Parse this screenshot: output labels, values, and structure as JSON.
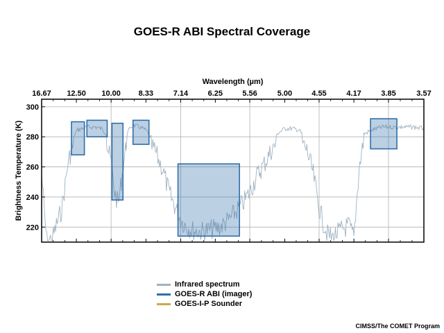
{
  "chart_data": {
    "type": "line",
    "title": "GOES-R ABI Spectral Coverage",
    "xlabel": "Wavelength (µm)",
    "ylabel": "Brightness Temperature (K)",
    "x_axis_scale": "reciprocal (wavenumber-linear)",
    "x_ticks": [
      "16.67",
      "12.50",
      "10.00",
      "8.33",
      "7.14",
      "6.25",
      "5.56",
      "5.00",
      "4.55",
      "4.17",
      "3.85",
      "3.57"
    ],
    "x_range": [
      16.67,
      3.57
    ],
    "ylim": [
      210,
      305
    ],
    "y_ticks": [
      220,
      240,
      260,
      280,
      300
    ],
    "grid": true,
    "series": [
      {
        "name": "Infrared spectrum",
        "color": "#9fb2c2",
        "x": [
          16.67,
          16.3,
          15.9,
          15.5,
          15.0,
          14.5,
          14.0,
          13.6,
          13.3,
          13.0,
          12.7,
          12.4,
          12.0,
          11.5,
          11.0,
          10.6,
          10.3,
          10.0,
          9.8,
          9.6,
          9.4,
          9.2,
          9.0,
          8.8,
          8.6,
          8.33,
          8.0,
          7.7,
          7.5,
          7.3,
          7.14,
          7.0,
          6.8,
          6.6,
          6.4,
          6.25,
          6.1,
          5.95,
          5.8,
          5.7,
          5.56,
          5.45,
          5.3,
          5.2,
          5.1,
          5.0,
          4.9,
          4.8,
          4.7,
          4.62,
          4.55,
          4.5,
          4.45,
          4.4,
          4.3,
          4.22,
          4.17,
          4.12,
          4.08,
          4.0,
          3.95,
          3.9,
          3.85,
          3.8,
          3.75,
          3.7,
          3.65,
          3.57
        ],
        "y": [
          262,
          240,
          218,
          218,
          221,
          230,
          238,
          255,
          270,
          277,
          283,
          286,
          287,
          288,
          288,
          287,
          284,
          270,
          250,
          242,
          262,
          282,
          288,
          289,
          288,
          286,
          278,
          265,
          250,
          240,
          232,
          228,
          225,
          224,
          225,
          226,
          228,
          232,
          238,
          242,
          250,
          260,
          270,
          278,
          284,
          287,
          287,
          286,
          278,
          262,
          240,
          230,
          222,
          220,
          225,
          228,
          220,
          265,
          283,
          286,
          287,
          288,
          288,
          288,
          288,
          288,
          288,
          287
        ]
      },
      {
        "name": "GOES-R ABI (imager)",
        "color": "#2f6ea8",
        "bands": [
          {
            "x_from": 12.96,
            "x_to": 11.82,
            "y_from": 268,
            "y_to": 290
          },
          {
            "x_from": 11.62,
            "x_to": 10.23,
            "y_from": 280,
            "y_to": 291
          },
          {
            "x_from": 9.95,
            "x_to": 9.36,
            "y_from": 238,
            "y_to": 289
          },
          {
            "x_from": 8.88,
            "x_to": 8.21,
            "y_from": 275,
            "y_to": 291
          },
          {
            "x_from": 7.22,
            "x_to": 5.75,
            "y_from": 214,
            "y_to": 262
          },
          {
            "x_from": 4.01,
            "x_to": 3.78,
            "y_from": 272,
            "y_to": 292
          }
        ]
      },
      {
        "name": "GOES-I-P Sounder",
        "color": "#c9a94c"
      }
    ]
  },
  "credit": "CIMSS/The COMET Program"
}
